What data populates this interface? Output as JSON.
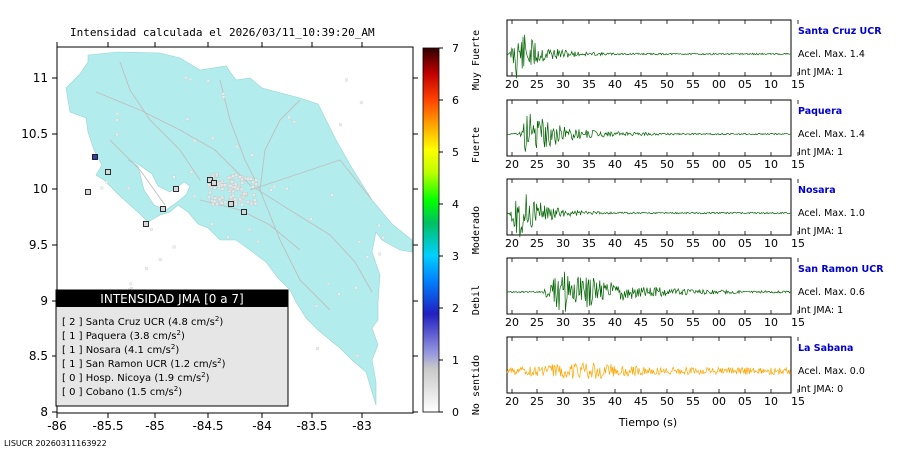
{
  "map": {
    "title": "Intensidad calculada el 2026/03/11_10:39:20_AM",
    "footer": "LISUCR 20260311163922",
    "x_ticks": [
      "-86",
      "-85.5",
      "-85",
      "-84.5",
      "-84",
      "-83.5",
      "-83"
    ],
    "y_ticks": [
      "11",
      "10.5",
      "10",
      "9.5",
      "9",
      "8.5",
      "8"
    ],
    "land_color": "#b3ecec",
    "sea_color": "#ffffff",
    "legend": {
      "title": "INTENSIDAD JMA [0 a 7]",
      "items": [
        {
          "int": "[ 2 ]",
          "name": "Santa Cruz UCR",
          "acc": "(4.8 cm/s",
          "exp": "2",
          ")": ")"
        },
        {
          "int": "[ 1 ]",
          "name": "Paquera",
          "acc": "(3.8 cm/s",
          "exp": "2",
          ")": ")"
        },
        {
          "int": "[ 1 ]",
          "name": "Nosara",
          "acc": "(4.1 cm/s",
          "exp": "2",
          ")": ")"
        },
        {
          "int": "[ 1 ]",
          "name": "San Ramon UCR",
          "acc": "(1.2 cm/s",
          "exp": "2",
          ")": ")"
        },
        {
          "int": "[ 0 ]",
          "name": "Hosp. Nicoya",
          "acc": "(1.9 cm/s",
          "exp": "2",
          ")": ")"
        },
        {
          "int": "[ 0 ]",
          "name": "Cobano",
          "acc": "(1.5 cm/s",
          "exp": "2",
          ")": ")"
        }
      ]
    }
  },
  "colorbar": {
    "ticks": [
      "0",
      "1",
      "2",
      "3",
      "4",
      "5",
      "6",
      "7"
    ],
    "labels": [
      "No sentido",
      "Debil",
      "Moderado",
      "Fuerte",
      "Muy Fuerte"
    ]
  },
  "chart_data": [
    {
      "type": "line",
      "name": "Santa Cruz UCR",
      "accel_text": "Acel. Max. 1.4",
      "jma_text": "Int JMA: 1",
      "color": "#006400",
      "x_ticks": [
        "20",
        "25",
        "30",
        "35",
        "40",
        "45",
        "50",
        "55",
        "00",
        "05",
        "10",
        "15"
      ],
      "envelope": {
        "onset_s": 19.5,
        "peak_amplitude": 1.0,
        "decay": "fast"
      }
    },
    {
      "type": "line",
      "name": "Paquera",
      "accel_text": "Acel. Max. 1.4",
      "jma_text": "Int JMA: 1",
      "color": "#006400",
      "x_ticks": [
        "20",
        "25",
        "30",
        "35",
        "40",
        "45",
        "50",
        "55",
        "00",
        "05",
        "10",
        "15"
      ],
      "envelope": {
        "onset_s": 21.5,
        "peak_amplitude": 0.85,
        "decay": "medium"
      }
    },
    {
      "type": "line",
      "name": "Nosara",
      "accel_text": "Acel. Max. 1.0",
      "jma_text": "Int JMA: 1",
      "color": "#006400",
      "x_ticks": [
        "20",
        "25",
        "30",
        "35",
        "40",
        "45",
        "50",
        "55",
        "00",
        "05",
        "10",
        "15"
      ],
      "envelope": {
        "onset_s": 19.5,
        "peak_amplitude": 1.0,
        "decay": "fast"
      }
    },
    {
      "type": "line",
      "name": "San Ramon UCR",
      "accel_text": "Acel. Max. 0.6",
      "jma_text": "Int JMA: 1",
      "color": "#006400",
      "x_ticks": [
        "20",
        "25",
        "30",
        "35",
        "40",
        "45",
        "50",
        "55",
        "00",
        "05",
        "10",
        "15"
      ],
      "envelope": {
        "onset_s": 26,
        "peak_amplitude": 0.9,
        "decay": "slow"
      }
    },
    {
      "type": "line",
      "name": "La Sabana",
      "accel_text": "Acel. Max. 0.0",
      "jma_text": "Int JMA: 0",
      "color": "#ffa500",
      "x_ticks": [
        "20",
        "25",
        "30",
        "35",
        "40",
        "45",
        "50",
        "55",
        "00",
        "05",
        "10",
        "15"
      ],
      "xlabel": "Tiempo (s)",
      "envelope": {
        "onset_s": 18,
        "peak_amplitude": 0.75,
        "decay": "noise"
      }
    }
  ]
}
